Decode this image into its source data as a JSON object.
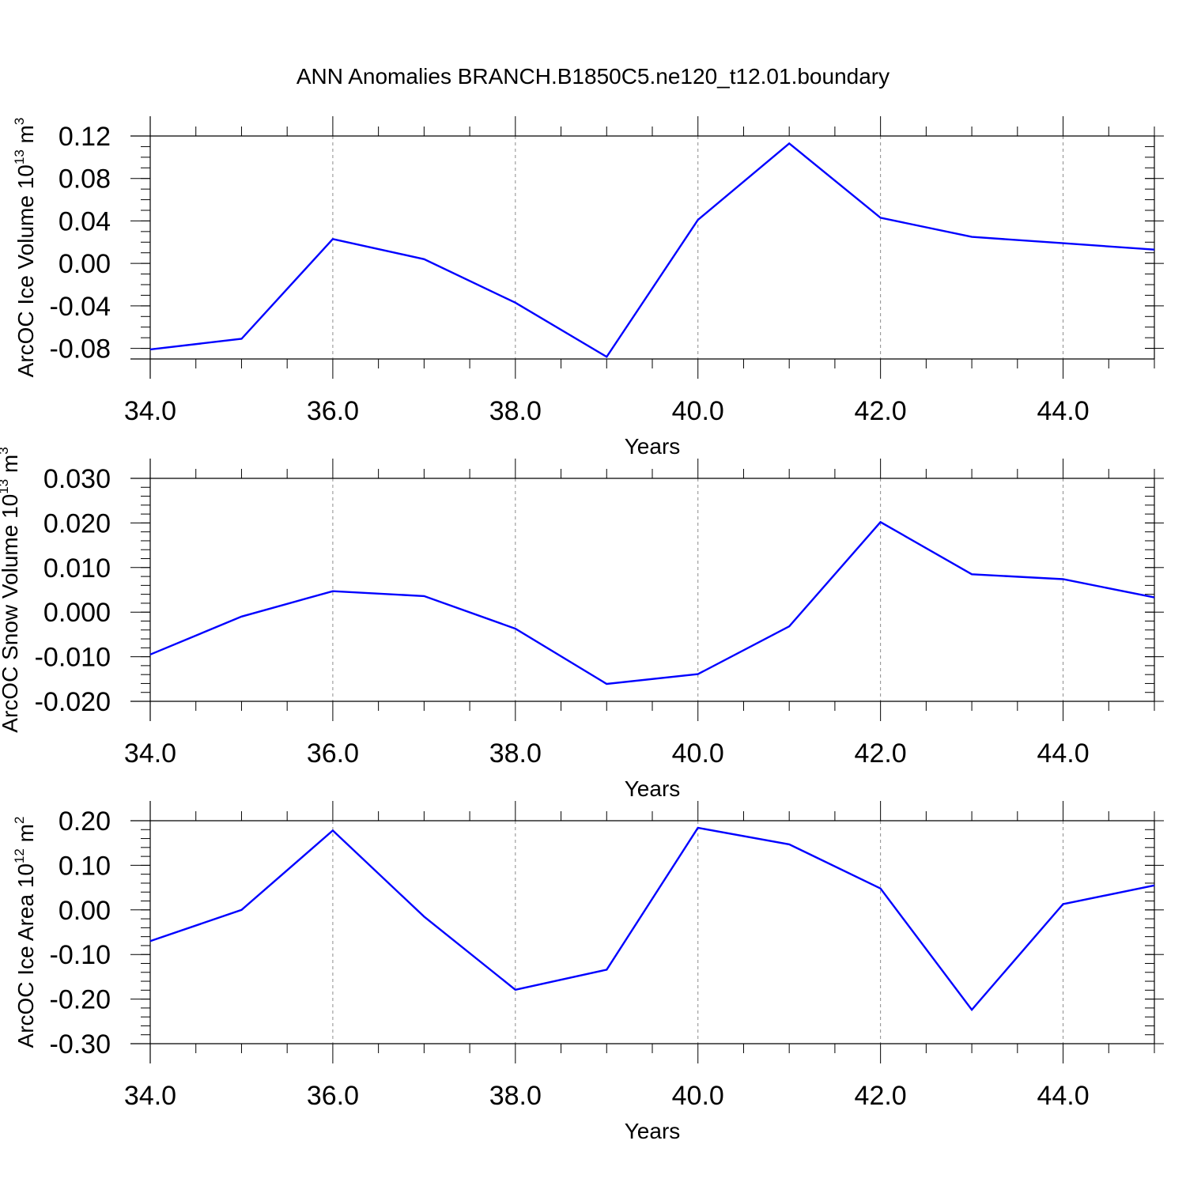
{
  "title": "ANN Anomalies BRANCH.B1850C5.ne120_t12.01.boundary",
  "colors": {
    "line": "#0000ff",
    "axis": "#000000",
    "grid": "#8c8c8c"
  },
  "chart_data": [
    {
      "type": "line",
      "ylabel": {
        "text": "ArcOC Ice Volume 10",
        "sup": "13",
        "unit": " m",
        "unit_sup": "3"
      },
      "xlabel": "Years",
      "xlim": [
        34,
        45
      ],
      "ylim": [
        -0.09,
        0.12
      ],
      "x_ticks": [
        34,
        36,
        38,
        40,
        42,
        44
      ],
      "x_tick_labels": [
        "34.0",
        "36.0",
        "38.0",
        "40.0",
        "42.0",
        "44.0"
      ],
      "y_ticks": [
        -0.08,
        -0.04,
        0.0,
        0.04,
        0.08,
        0.12
      ],
      "y_tick_labels": [
        "-0.08",
        "-0.04",
        "0.00",
        "0.04",
        "0.08",
        "0.12"
      ],
      "y_minor_step": 0.01,
      "grid": "vertical dashed at major x ticks",
      "x": [
        34,
        35,
        36,
        37,
        38,
        39,
        40,
        41,
        42,
        43,
        44,
        45
      ],
      "y": [
        -0.081,
        -0.071,
        0.023,
        0.004,
        -0.037,
        -0.088,
        0.041,
        0.113,
        0.043,
        0.025,
        0.019,
        0.013
      ]
    },
    {
      "type": "line",
      "ylabel": {
        "text": "ArcOC Snow Volume 10",
        "sup": "13",
        "unit": " m",
        "unit_sup": "3"
      },
      "xlabel": "Years",
      "xlim": [
        34,
        45
      ],
      "ylim": [
        -0.02,
        0.03
      ],
      "x_ticks": [
        34,
        36,
        38,
        40,
        42,
        44
      ],
      "x_tick_labels": [
        "34.0",
        "36.0",
        "38.0",
        "40.0",
        "42.0",
        "44.0"
      ],
      "y_ticks": [
        -0.02,
        -0.01,
        0.0,
        0.01,
        0.02,
        0.03
      ],
      "y_tick_labels": [
        "-0.020",
        "-0.010",
        "0.000",
        "0.010",
        "0.020",
        "0.030"
      ],
      "y_minor_step": 0.002,
      "grid": "vertical dashed at major x ticks",
      "x": [
        34,
        35,
        36,
        37,
        38,
        39,
        40,
        41,
        42,
        43,
        44,
        45
      ],
      "y": [
        -0.0095,
        -0.001,
        0.0047,
        0.0036,
        -0.0037,
        -0.0161,
        -0.0139,
        -0.0032,
        0.0202,
        0.0085,
        0.0074,
        0.0033
      ]
    },
    {
      "type": "line",
      "ylabel": {
        "text": "ArcOC Ice Area 10",
        "sup": "12",
        "unit": " m",
        "unit_sup": "2"
      },
      "xlabel": "Years",
      "xlim": [
        34,
        45
      ],
      "ylim": [
        -0.3,
        0.2
      ],
      "x_ticks": [
        34,
        36,
        38,
        40,
        42,
        44
      ],
      "x_tick_labels": [
        "34.0",
        "36.0",
        "38.0",
        "40.0",
        "42.0",
        "44.0"
      ],
      "y_ticks": [
        -0.3,
        -0.2,
        -0.1,
        0.0,
        0.1,
        0.2
      ],
      "y_tick_labels": [
        "-0.30",
        "-0.20",
        "-0.10",
        "0.00",
        "0.10",
        "0.20"
      ],
      "y_minor_step": 0.02,
      "grid": "vertical dashed at major x ticks",
      "x": [
        34,
        35,
        36,
        37,
        38,
        39,
        40,
        41,
        42,
        43,
        44,
        45
      ],
      "y": [
        -0.07,
        0.0,
        0.178,
        -0.015,
        -0.179,
        -0.134,
        0.184,
        0.147,
        0.048,
        -0.224,
        0.013,
        0.055
      ]
    }
  ]
}
